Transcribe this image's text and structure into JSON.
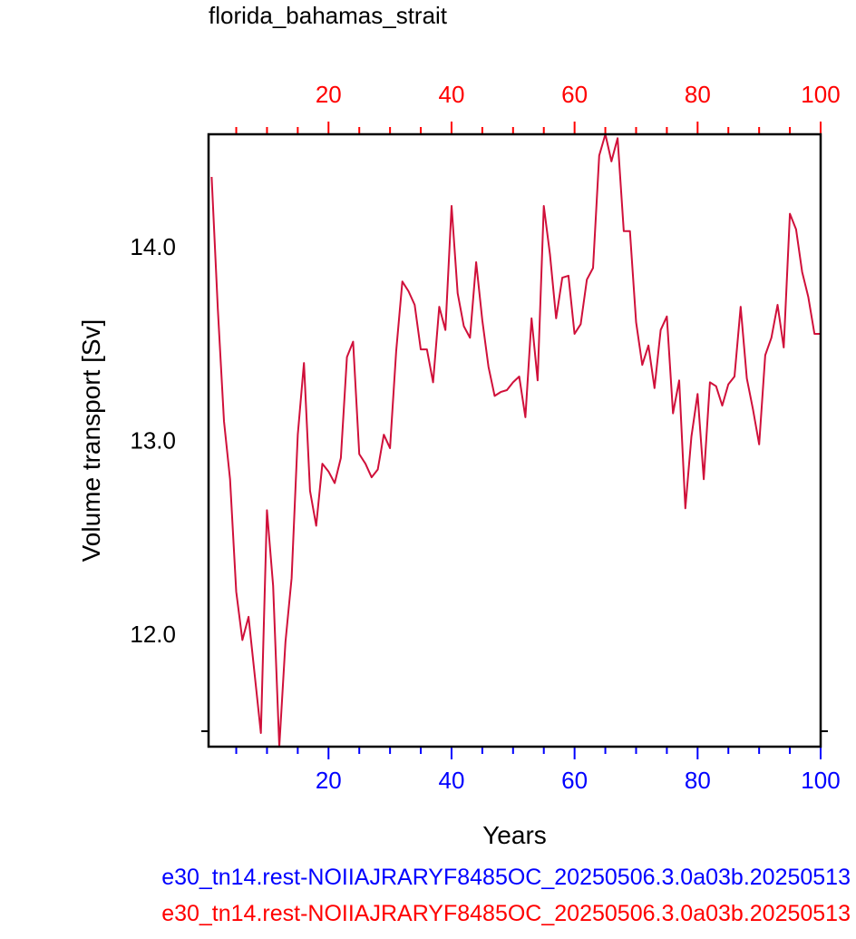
{
  "chart_data": {
    "type": "line",
    "title": "florida_bahamas_strait",
    "xlabel": "Years",
    "ylabel": "Volume transport [Sv]",
    "xlim": [
      0.5,
      100
    ],
    "ylim": [
      11.42,
      14.58
    ],
    "x_ticks": [
      20,
      40,
      60,
      80,
      100
    ],
    "x_tick_labels": [
      "20",
      "40",
      "60",
      "80",
      "100"
    ],
    "y_ticks": [
      12.0,
      13.0,
      14.0
    ],
    "y_tick_labels": [
      "12.0",
      "13.0",
      "14.0"
    ],
    "grid": false,
    "legend": [
      {
        "name": "e30_tn14.rest-NOIIAJRARYF8485OC_20250506.3.0a03b.20250513",
        "color": "#0000ff"
      },
      {
        "name": "e30_tn14.rest-NOIIAJRARYF8485OC_20250506.3.0a03b.20250513",
        "color": "#ff0000"
      }
    ],
    "colors": {
      "line": "#d0103a",
      "bottom_axis": "#0000ff",
      "top_axis": "#ff0000",
      "frame": "#000000"
    },
    "series": [
      {
        "x": [
          1,
          2,
          3,
          4,
          5,
          6,
          7,
          8,
          9,
          10,
          11,
          12,
          13,
          14,
          15,
          16,
          17,
          18,
          19,
          20,
          21,
          22,
          23,
          24,
          25,
          26,
          27,
          28,
          29,
          30,
          31,
          32,
          33,
          34,
          35,
          36,
          37,
          38,
          39,
          40,
          41,
          42,
          43,
          44,
          45,
          46,
          47,
          48,
          49,
          50,
          51,
          52,
          53,
          54,
          55,
          56,
          57,
          58,
          59,
          60,
          61,
          62,
          63,
          64,
          65,
          66,
          67,
          68,
          69,
          70,
          71,
          72,
          73,
          74,
          75,
          76,
          77,
          78,
          79,
          80,
          81,
          82,
          83,
          84,
          85,
          86,
          87,
          88,
          89,
          90,
          91,
          92,
          93,
          94,
          95,
          96,
          97,
          98,
          99,
          100
        ],
        "values": [
          14.36,
          13.68,
          13.1,
          12.8,
          12.22,
          11.97,
          12.09,
          11.79,
          11.49,
          12.64,
          12.25,
          11.42,
          11.96,
          12.29,
          13.03,
          13.4,
          12.74,
          12.56,
          12.88,
          12.84,
          12.78,
          12.91,
          13.43,
          13.51,
          12.93,
          12.88,
          12.81,
          12.85,
          13.03,
          12.96,
          13.46,
          13.82,
          13.77,
          13.7,
          13.47,
          13.47,
          13.3,
          13.69,
          13.57,
          14.21,
          13.76,
          13.59,
          13.53,
          13.92,
          13.62,
          13.38,
          13.23,
          13.25,
          13.26,
          13.3,
          13.33,
          13.12,
          13.63,
          13.31,
          14.21,
          13.96,
          13.63,
          13.84,
          13.85,
          13.55,
          13.6,
          13.83,
          13.89,
          14.47,
          14.58,
          14.44,
          14.56,
          14.08,
          14.08,
          13.61,
          13.39,
          13.49,
          13.27,
          13.57,
          13.64,
          13.14,
          13.31,
          12.65,
          13.02,
          13.24,
          12.8,
          13.3,
          13.28,
          13.18,
          13.29,
          13.33,
          13.69,
          13.32,
          13.16,
          12.98,
          13.44,
          13.53,
          13.7,
          13.48,
          14.17,
          14.09,
          13.87,
          13.74,
          13.55,
          13.55
        ]
      }
    ]
  }
}
